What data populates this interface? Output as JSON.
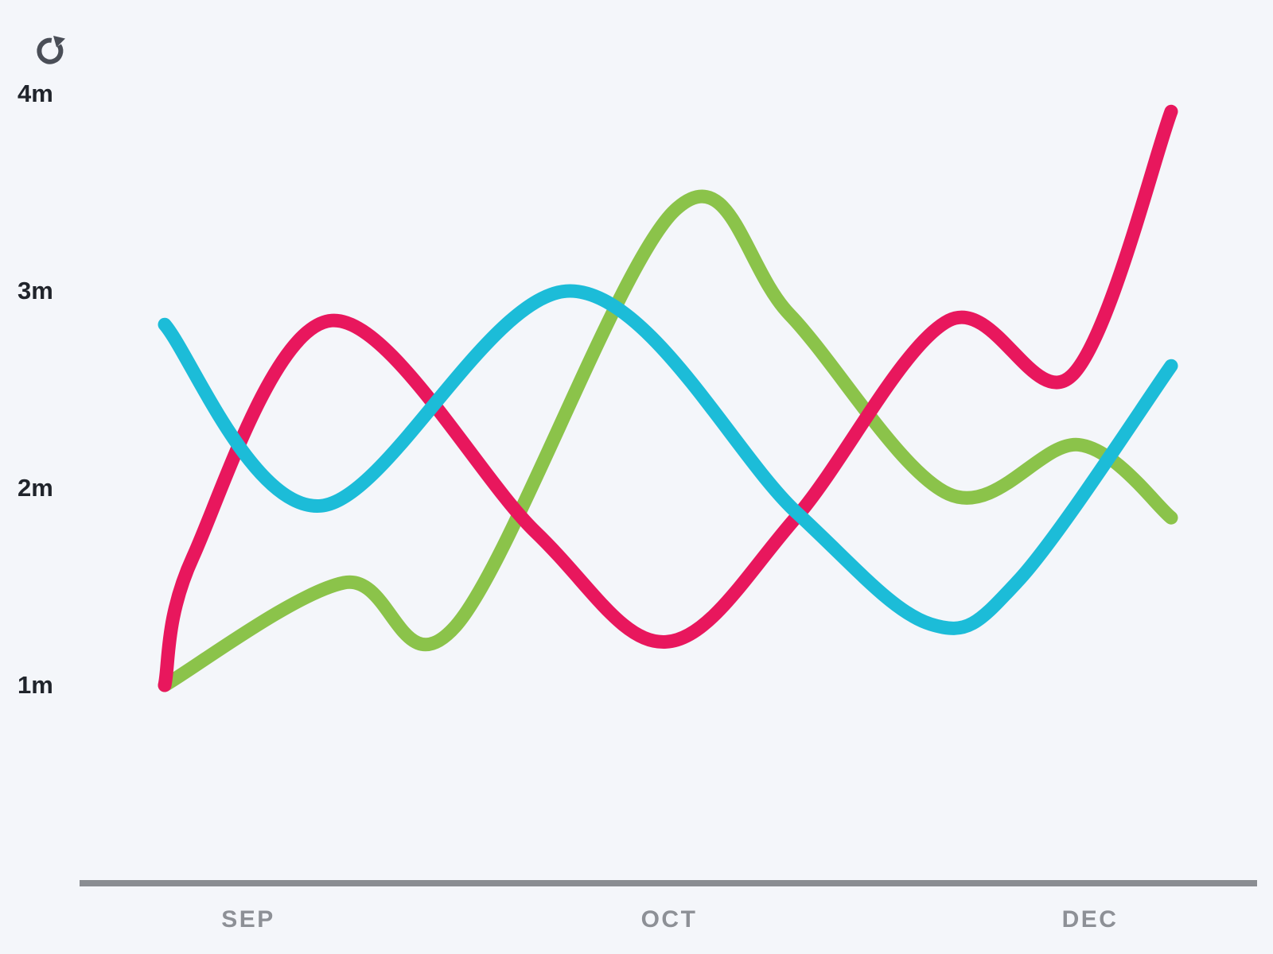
{
  "toolbar": {
    "refresh_icon": "refresh-icon"
  },
  "chart_data": {
    "type": "line",
    "title": "",
    "grid": false,
    "legend": false,
    "colors": {
      "pink": "#E8175D",
      "cyan": "#1CBCD8",
      "green": "#8BC34A",
      "background": "#F4F6FA",
      "axis_line": "#8A8D92",
      "x_label": "#8D9096",
      "y_label": "#20242B",
      "icon": "#4A4E57"
    },
    "y_axis": {
      "unit": "m",
      "min": 1,
      "max": 4,
      "ticks": [
        {
          "value": 4,
          "label": "4m"
        },
        {
          "value": 3,
          "label": "3m"
        },
        {
          "value": 2,
          "label": "2m"
        },
        {
          "value": 1,
          "label": "1m"
        }
      ]
    },
    "x_axis": {
      "ticks": [
        {
          "label": "SEP",
          "t": 0.083
        },
        {
          "label": "OCT",
          "t": 0.5
        },
        {
          "label": "DEC",
          "t": 0.919
        }
      ]
    },
    "series": [
      {
        "name": "green-series",
        "color": "#8BC34A",
        "points": [
          {
            "t": 0.0,
            "v": 1.0
          },
          {
            "t": 0.178,
            "v": 1.52
          },
          {
            "t": 0.289,
            "v": 1.3
          },
          {
            "t": 0.507,
            "v": 3.41
          },
          {
            "t": 0.621,
            "v": 2.88
          },
          {
            "t": 0.779,
            "v": 1.97
          },
          {
            "t": 0.908,
            "v": 2.22
          },
          {
            "t": 1.0,
            "v": 1.85
          }
        ]
      },
      {
        "name": "pink-series",
        "color": "#E8175D",
        "points": [
          {
            "t": 0.0,
            "v": 1.0
          },
          {
            "t": 0.028,
            "v": 1.65
          },
          {
            "t": 0.166,
            "v": 2.85
          },
          {
            "t": 0.368,
            "v": 1.78
          },
          {
            "t": 0.498,
            "v": 1.22
          },
          {
            "t": 0.627,
            "v": 1.85
          },
          {
            "t": 0.779,
            "v": 2.85
          },
          {
            "t": 0.901,
            "v": 2.57
          },
          {
            "t": 1.0,
            "v": 3.91
          }
        ]
      },
      {
        "name": "cyan-series",
        "color": "#1CBCD8",
        "points": [
          {
            "t": 0.0,
            "v": 2.83
          },
          {
            "t": 0.155,
            "v": 1.91
          },
          {
            "t": 0.403,
            "v": 3.0
          },
          {
            "t": 0.627,
            "v": 1.88
          },
          {
            "t": 0.761,
            "v": 1.31
          },
          {
            "t": 0.848,
            "v": 1.53
          },
          {
            "t": 1.0,
            "v": 2.62
          }
        ]
      }
    ]
  }
}
